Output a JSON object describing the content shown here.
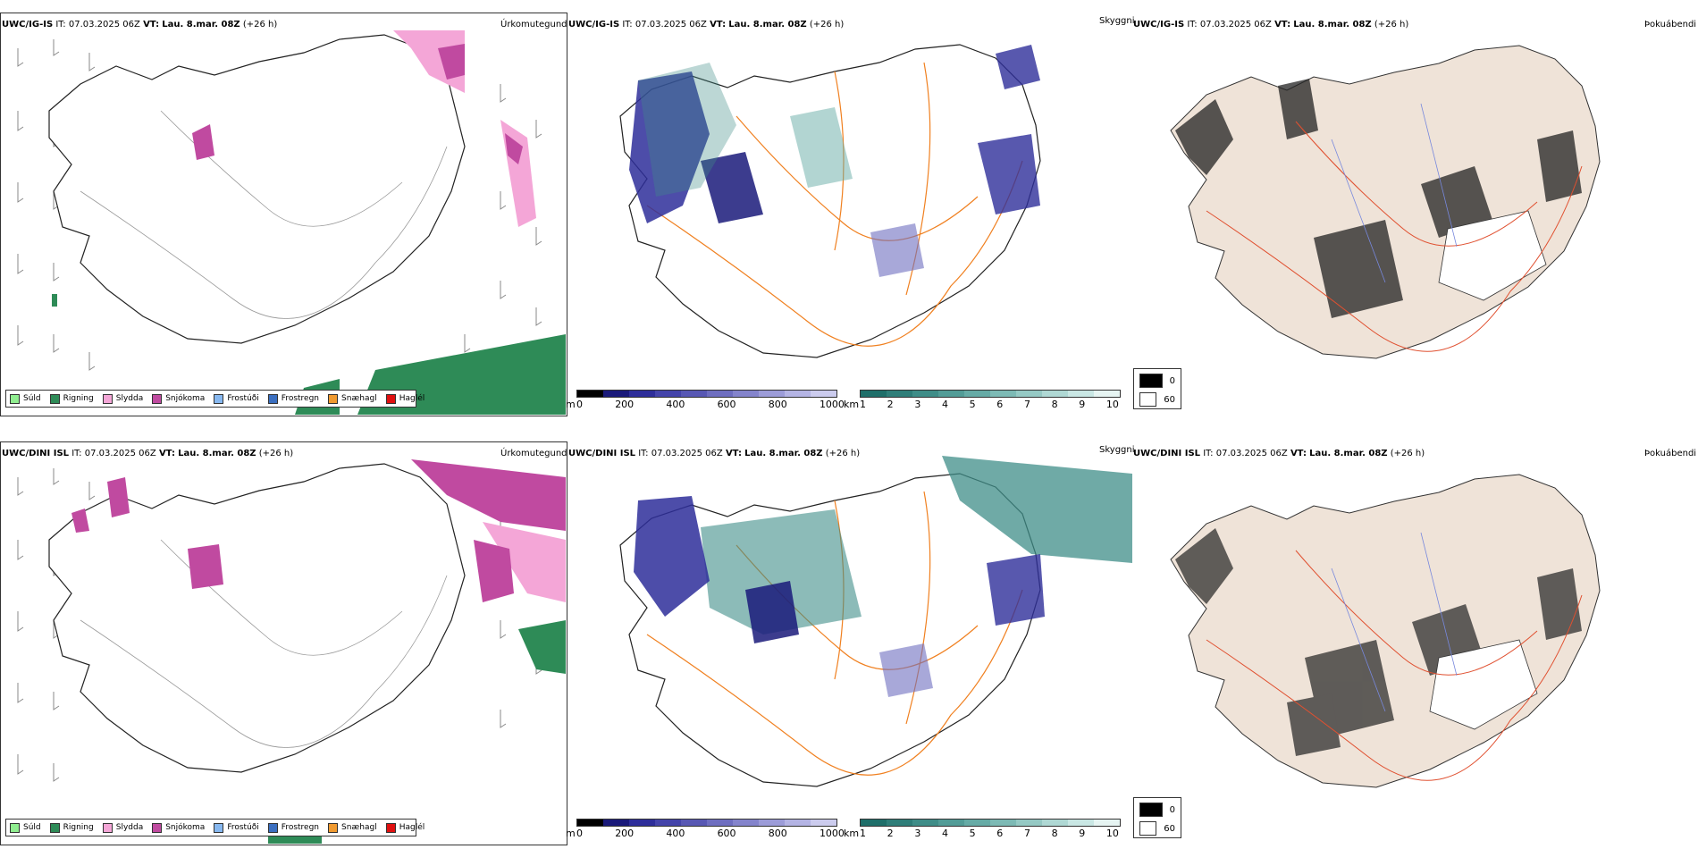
{
  "rows": [
    {
      "model": "UWC/IG-IS",
      "it_label": "IT:",
      "it_value": "07.03.2025 06Z",
      "vt_label": "VT:",
      "vt_value": "Lau. 8.mar. 08Z",
      "lead": "(+26 h)"
    },
    {
      "model": "UWC/DINI ISL",
      "it_label": "IT:",
      "it_value": "07.03.2025 06Z",
      "vt_label": "VT:",
      "vt_value": "Lau. 8.mar. 08Z",
      "lead": "(+26 h)"
    }
  ],
  "fields": {
    "precip": "Úrkomutegund",
    "visibility": "Skyggni",
    "fog": "Þokuábendi"
  },
  "precip_legend": [
    {
      "label": "Súld",
      "color": "#90ee90"
    },
    {
      "label": "Rigning",
      "color": "#2e8b57"
    },
    {
      "label": "Slydda",
      "color": "#f4a6d7"
    },
    {
      "label": "Snjókoma",
      "color": "#c04aa0"
    },
    {
      "label": "Frostúði",
      "color": "#87b8f0"
    },
    {
      "label": "Frostregn",
      "color": "#3b6fc0"
    },
    {
      "label": "Snæhagl",
      "color": "#f09a30"
    },
    {
      "label": "Haglél",
      "color": "#e01010"
    }
  ],
  "elevation_bar": {
    "unit": "m",
    "ticks": [
      "0",
      "200",
      "400",
      "600",
      "800",
      "1000"
    ],
    "colors": [
      "#000000",
      "#1a1a7a",
      "#2e2e9a",
      "#4444aa",
      "#5858b4",
      "#6e6ec0",
      "#8484cc",
      "#9c9cd8",
      "#b4b4e4",
      "#ccccee"
    ]
  },
  "visibility_bar": {
    "unit": "km",
    "ticks": [
      "1",
      "2",
      "3",
      "4",
      "5",
      "6",
      "7",
      "8",
      "9",
      "10"
    ],
    "colors": [
      "#1f6f6a",
      "#2f7e79",
      "#3f8d88",
      "#529c97",
      "#66aba6",
      "#7dbab5",
      "#95c9c4",
      "#afd8d4",
      "#c9e7e4",
      "#e6f4f2"
    ]
  },
  "fog_scale": [
    {
      "value": "0",
      "color": "#000000"
    },
    {
      "value": "60",
      "color": "#ffffff"
    }
  ],
  "overlay_colors": {
    "coast": "#222222",
    "roads": "#f08020",
    "roads_fog": "#e05030",
    "rivers": "#7788dd",
    "land_fog": "#efe3d8"
  }
}
